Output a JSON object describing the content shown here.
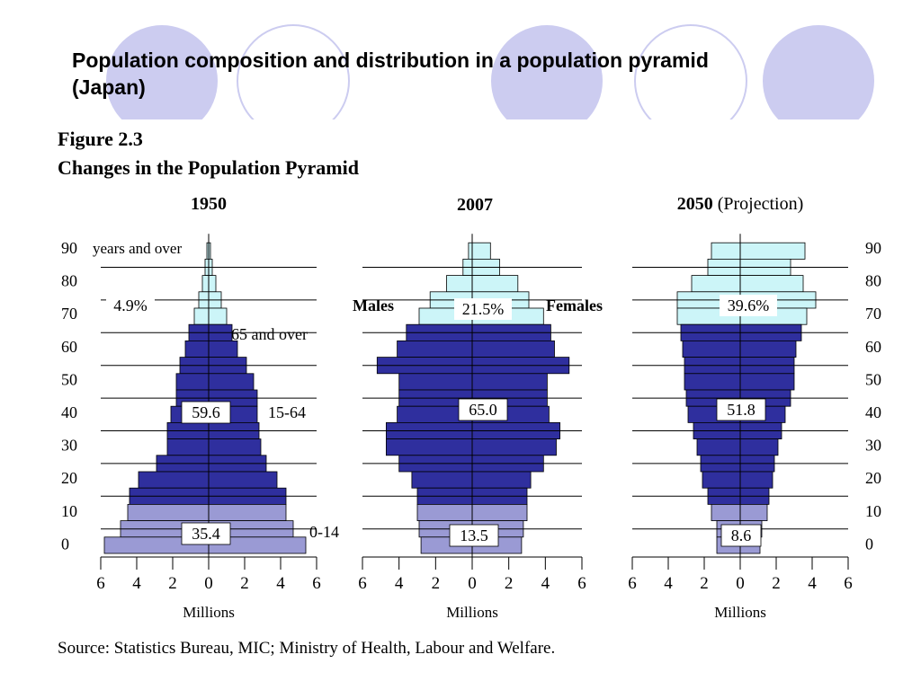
{
  "slide": {
    "title_line1": "Population composition and distribution in a population pyramid",
    "title_line2": "(Japan)"
  },
  "figure": {
    "label": "Figure 2.3",
    "title": "Changes in the Population Pyramid",
    "source": "Source:  Statistics Bureau, MIC;  Ministry of Health, Labour and Welfare.",
    "colors": {
      "age_65_over": "#ccf5f8",
      "age_15_64": "#2f2f9e",
      "age_0_14": "#9a9ad4",
      "outline": "#000000"
    }
  },
  "chart_data": [
    {
      "type": "bar",
      "title": "1950",
      "title_suffix": "",
      "xlabel": "Millions",
      "xlim": [
        -6,
        6
      ],
      "x_ticks": [
        6,
        4,
        2,
        0,
        2,
        4,
        6
      ],
      "age_ticks": [
        "90",
        "80",
        "70",
        "60",
        "50",
        "40",
        "30",
        "20",
        "10",
        "0"
      ],
      "age_tick_side": "left",
      "top_age_label": "years and over",
      "series": [
        {
          "name": "Males",
          "values": [
            0.1,
            0.2,
            0.35,
            0.55,
            0.8,
            1.1,
            1.3,
            1.6,
            1.8,
            1.8,
            2.1,
            2.3,
            2.3,
            2.9,
            3.9,
            4.4,
            4.5,
            4.9,
            5.8
          ]
        },
        {
          "name": "Females",
          "values": [
            0.1,
            0.2,
            0.4,
            0.7,
            1.0,
            1.3,
            1.6,
            2.1,
            2.5,
            2.7,
            2.7,
            2.8,
            2.9,
            3.2,
            3.8,
            4.3,
            4.3,
            4.7,
            5.4
          ]
        }
      ],
      "annotations": [
        {
          "text": "4.9%",
          "group": "65 and over"
        },
        {
          "text": "65 and over"
        },
        {
          "text": "59.6",
          "group": "15-64"
        },
        {
          "text": "15-64"
        },
        {
          "text": "35.4",
          "group": "0-14"
        },
        {
          "text": "0-14"
        }
      ]
    },
    {
      "type": "bar",
      "title": "2007",
      "title_suffix": "",
      "xlabel": "Millions",
      "xlim": [
        -6,
        6
      ],
      "x_ticks": [
        6,
        4,
        2,
        0,
        2,
        4,
        6
      ],
      "age_ticks": [],
      "side_labels": [
        "Males",
        "Females"
      ],
      "series": [
        {
          "name": "Males",
          "values": [
            0.2,
            0.5,
            1.4,
            2.3,
            2.9,
            3.6,
            4.1,
            5.2,
            4.0,
            4.0,
            4.1,
            4.7,
            4.7,
            4.0,
            3.3,
            3.0,
            3.0,
            2.9,
            2.8
          ]
        },
        {
          "name": "Females",
          "values": [
            1.0,
            1.5,
            2.5,
            3.1,
            3.9,
            4.3,
            4.5,
            5.3,
            4.1,
            4.1,
            4.2,
            4.8,
            4.6,
            3.9,
            3.2,
            3.0,
            3.0,
            2.8,
            2.7
          ]
        }
      ],
      "annotations": [
        {
          "text": "21.5%",
          "group": "65 and over"
        },
        {
          "text": "65.0",
          "group": "15-64"
        },
        {
          "text": "13.5",
          "group": "0-14"
        }
      ]
    },
    {
      "type": "bar",
      "title": "2050",
      "title_suffix": "(Projection)",
      "xlabel": "Millions",
      "xlim": [
        -6,
        6
      ],
      "x_ticks": [
        6,
        4,
        2,
        0,
        2,
        4,
        6
      ],
      "age_ticks": [
        "90",
        "80",
        "70",
        "60",
        "50",
        "40",
        "30",
        "20",
        "10",
        "0"
      ],
      "age_tick_side": "right",
      "series": [
        {
          "name": "Males",
          "values": [
            1.6,
            1.8,
            2.7,
            3.5,
            3.5,
            3.3,
            3.2,
            3.1,
            3.1,
            3.0,
            2.9,
            2.6,
            2.4,
            2.2,
            2.1,
            1.8,
            1.6,
            1.3,
            1.3
          ]
        },
        {
          "name": "Females",
          "values": [
            3.6,
            2.8,
            3.5,
            4.2,
            3.7,
            3.4,
            3.1,
            3.0,
            3.0,
            2.8,
            2.5,
            2.3,
            2.1,
            1.9,
            1.8,
            1.6,
            1.5,
            1.2,
            1.1
          ]
        }
      ],
      "annotations": [
        {
          "text": "39.6%",
          "group": "65 and over"
        },
        {
          "text": "51.8",
          "group": "15-64"
        },
        {
          "text": "8.6",
          "group": "0-14"
        }
      ]
    }
  ]
}
